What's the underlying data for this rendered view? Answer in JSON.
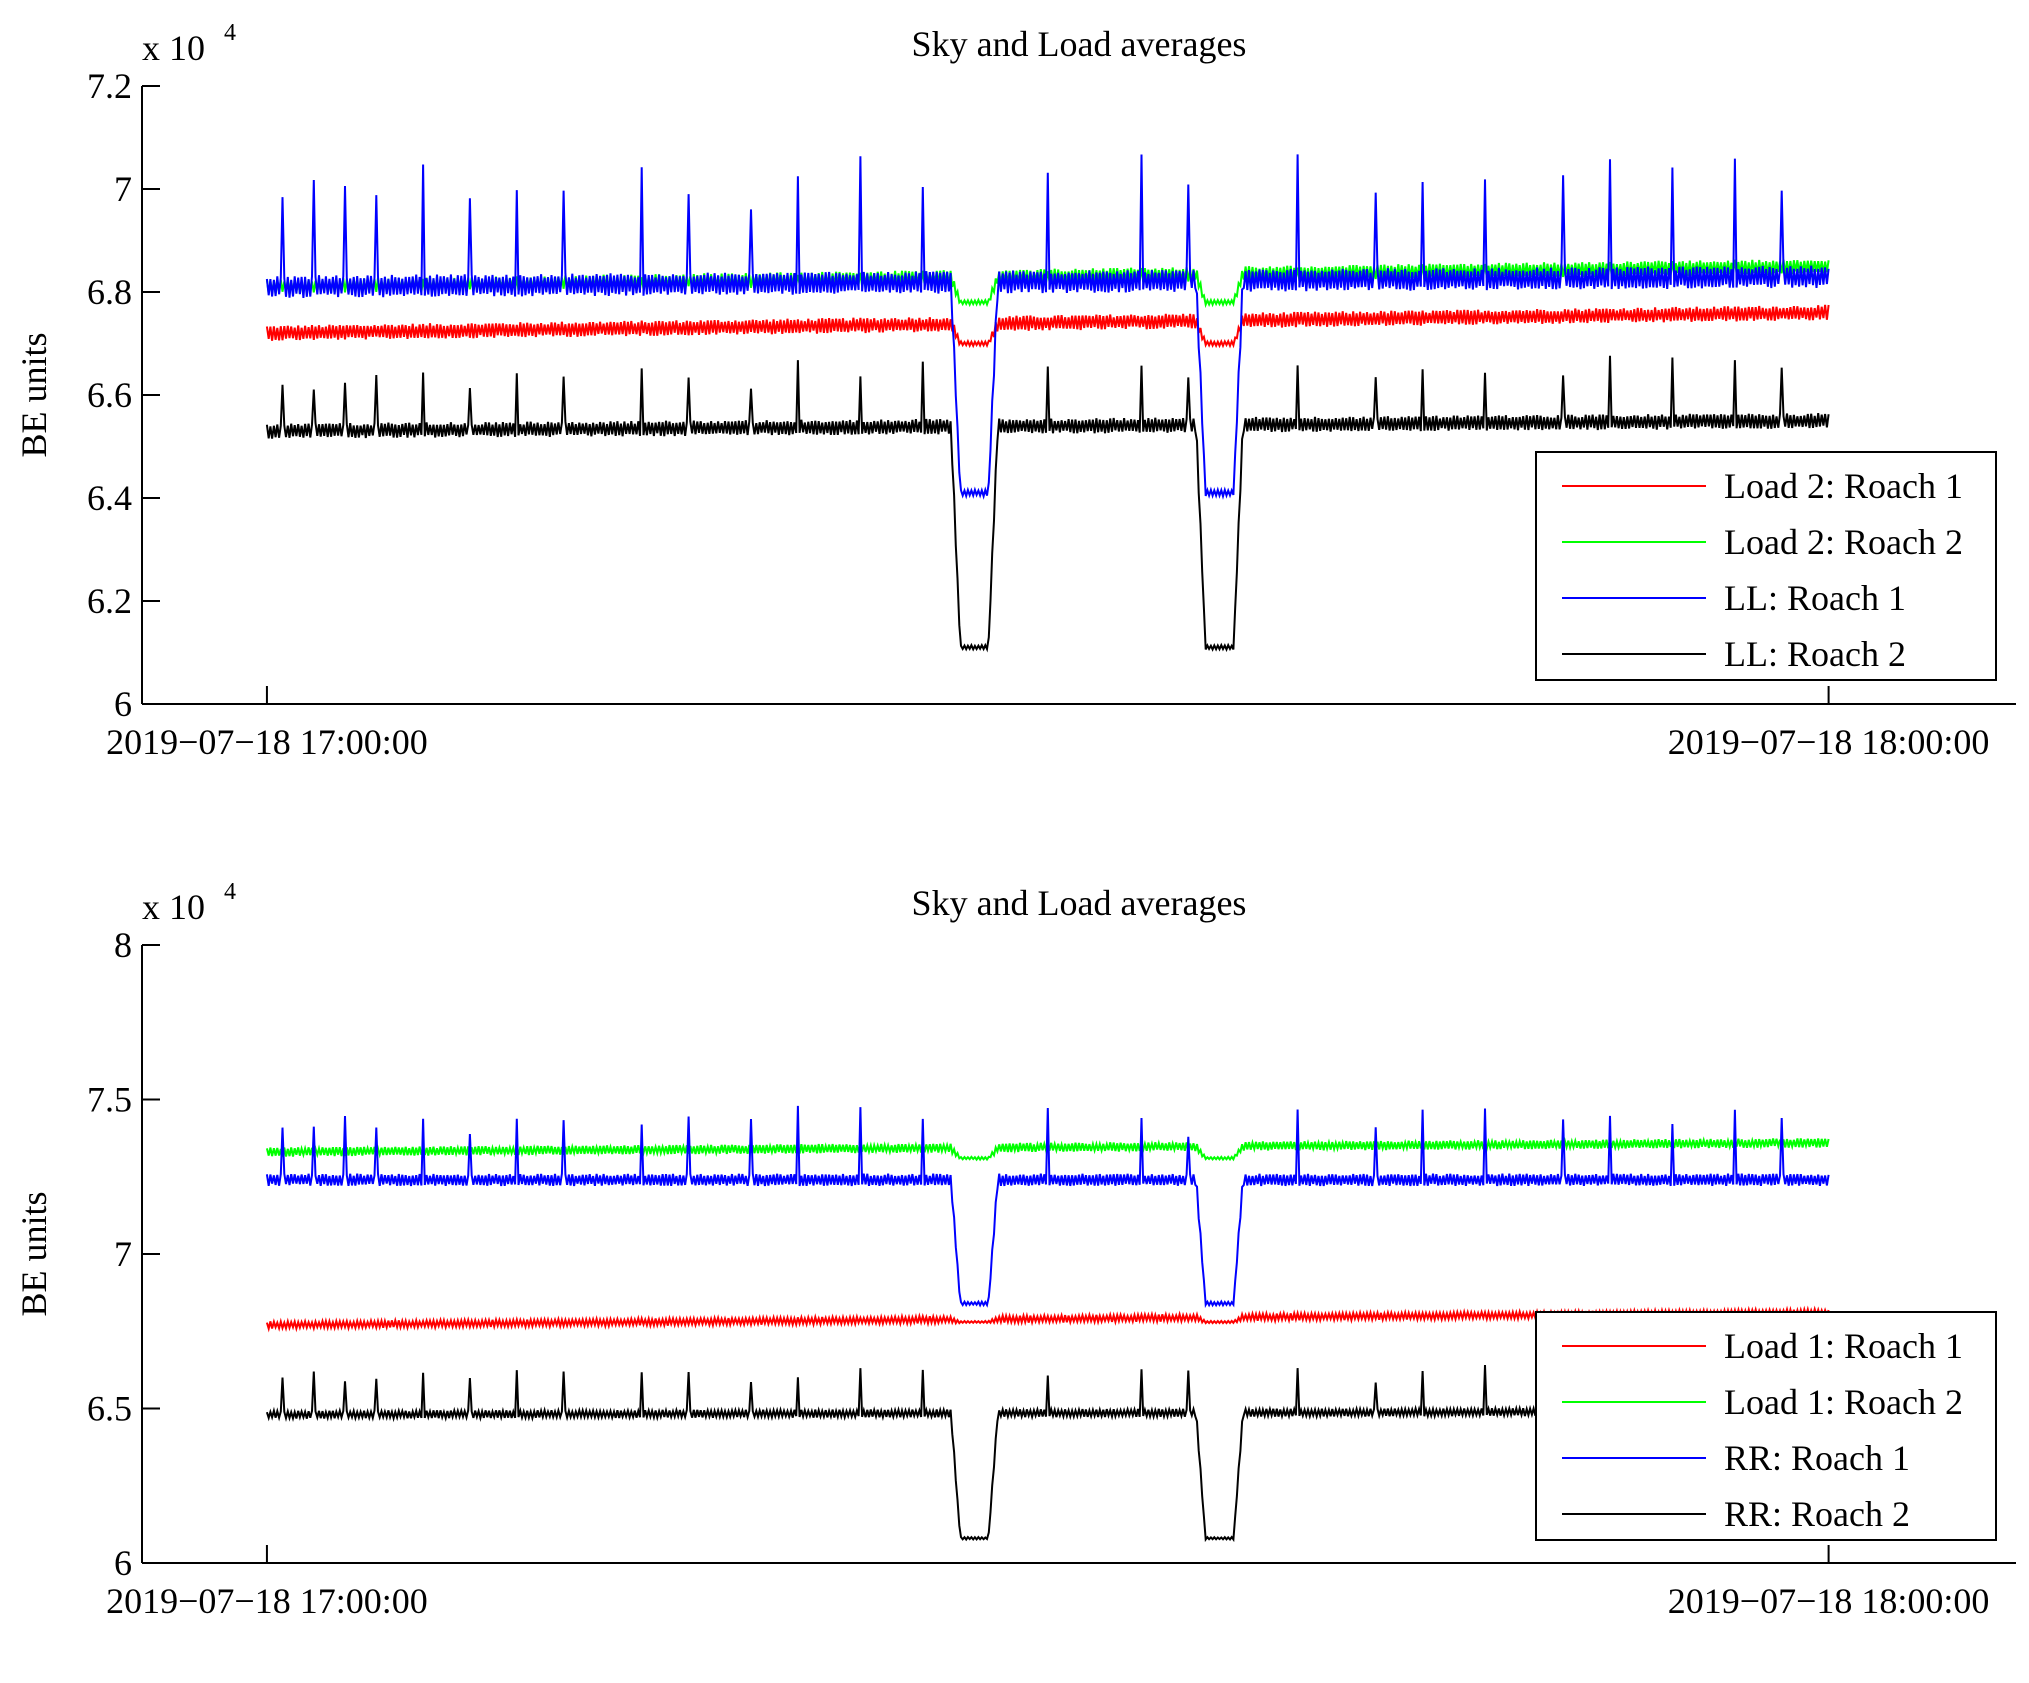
{
  "chart_data": [
    {
      "type": "line",
      "title": "Sky and Load averages",
      "xlabel": "",
      "ylabel": "BE units",
      "y_exponent_label": "x 10",
      "y_exponent_power": "4",
      "x_tick_labels": [
        "2019−07−18 17:00:00",
        "2019−07−18 18:00:00"
      ],
      "x_tick_positions_frac": [
        0.0,
        1.0
      ],
      "x_range_frac": [
        -0.08,
        1.12
      ],
      "ylim": [
        60000,
        72000
      ],
      "y_ticks": [
        60000,
        62000,
        64000,
        66000,
        68000,
        70000,
        72000
      ],
      "y_tick_labels": [
        "6",
        "6.2",
        "6.4",
        "6.6",
        "6.8",
        "7",
        "7.2"
      ],
      "legend_position": "bottom-right",
      "spike_times_frac": [
        0.01,
        0.03,
        0.05,
        0.07,
        0.1,
        0.13,
        0.16,
        0.19,
        0.24,
        0.27,
        0.31,
        0.34,
        0.38,
        0.42,
        0.45,
        0.5,
        0.56,
        0.59,
        0.62,
        0.66,
        0.71,
        0.74,
        0.78,
        0.83,
        0.86,
        0.9,
        0.94,
        0.97
      ],
      "dip_windows_frac": [
        [
          0.438,
          0.468
        ],
        [
          0.595,
          0.625
        ]
      ],
      "series": [
        {
          "name": "Load 2: Roach 1",
          "color": "#ff0000",
          "baseline_start": 67200,
          "baseline_end": 67600,
          "dip_value": 67000,
          "ripple": 150,
          "spike": 0
        },
        {
          "name": "Load 2: Roach 2",
          "color": "#00ff00",
          "baseline_start": 68100,
          "baseline_end": 68500,
          "dip_value": 67800,
          "ripple": 150,
          "spike": 0
        },
        {
          "name": "LL: Roach 1",
          "color": "#0000ff",
          "baseline_start": 68100,
          "baseline_end": 68300,
          "dip_value": 64100,
          "ripple": 220,
          "spike": 2300
        },
        {
          "name": "LL: Roach 2",
          "color": "#000000",
          "baseline_start": 65300,
          "baseline_end": 65500,
          "dip_value": 61100,
          "ripple": 150,
          "spike": 1200
        }
      ]
    },
    {
      "type": "line",
      "title": "Sky and Load averages",
      "xlabel": "",
      "ylabel": "BE units",
      "y_exponent_label": "x 10",
      "y_exponent_power": "4",
      "x_tick_labels": [
        "2019−07−18 17:00:00",
        "2019−07−18 18:00:00"
      ],
      "x_tick_positions_frac": [
        0.0,
        1.0
      ],
      "x_range_frac": [
        -0.08,
        1.12
      ],
      "ylim": [
        60000,
        80000
      ],
      "y_ticks": [
        60000,
        65000,
        70000,
        75000,
        80000
      ],
      "y_tick_labels": [
        "6",
        "6.5",
        "7",
        "7.5",
        "8"
      ],
      "legend_position": "bottom-right",
      "spike_times_frac": [
        0.01,
        0.03,
        0.05,
        0.07,
        0.1,
        0.13,
        0.16,
        0.19,
        0.24,
        0.27,
        0.31,
        0.34,
        0.38,
        0.42,
        0.45,
        0.5,
        0.56,
        0.59,
        0.62,
        0.66,
        0.71,
        0.74,
        0.78,
        0.83,
        0.86,
        0.9,
        0.94,
        0.97
      ],
      "dip_windows_frac": [
        [
          0.438,
          0.468
        ],
        [
          0.595,
          0.625
        ]
      ],
      "series": [
        {
          "name": "Load 1: Roach 1",
          "color": "#ff0000",
          "baseline_start": 67700,
          "baseline_end": 68100,
          "dip_value": 67800,
          "ripple": 120,
          "spike": 0
        },
        {
          "name": "Load 1: Roach 2",
          "color": "#00ff00",
          "baseline_start": 73300,
          "baseline_end": 73600,
          "dip_value": 73100,
          "ripple": 150,
          "spike": 0
        },
        {
          "name": "RR: Roach 1",
          "color": "#0000ff",
          "baseline_start": 72400,
          "baseline_end": 72400,
          "dip_value": 68400,
          "ripple": 200,
          "spike": 2200
        },
        {
          "name": "RR: Roach 2",
          "color": "#000000",
          "baseline_start": 64800,
          "baseline_end": 64900,
          "dip_value": 60800,
          "ripple": 130,
          "spike": 1500
        }
      ]
    }
  ]
}
